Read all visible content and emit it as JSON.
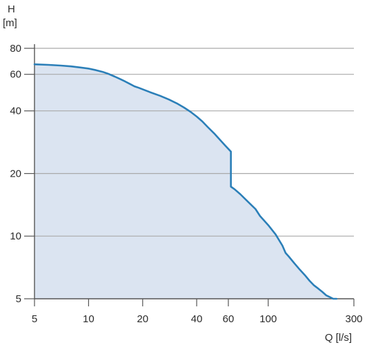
{
  "chart_data": {
    "type": "area",
    "title": "",
    "ylabel": "H",
    "ylabel_unit": "[m]",
    "xlabel": "Q [l/s]",
    "x_scale": "log",
    "y_scale": "log",
    "xlim": [
      5,
      300
    ],
    "ylim": [
      5,
      80
    ],
    "x_ticks": [
      5,
      10,
      20,
      40,
      60,
      100,
      300
    ],
    "y_ticks": [
      5,
      10,
      20,
      40,
      60,
      80
    ],
    "grid": true,
    "legend": "none",
    "colors": {
      "line": "#2b7fb8",
      "fill": "#dbe4f1",
      "grid": "#a9a9a9",
      "axis": "#555555",
      "text": "#2b2b2b"
    },
    "series": [
      {
        "x": [
          5,
          6,
          7,
          8,
          9,
          10,
          11,
          12,
          13,
          14,
          15,
          16,
          17,
          18,
          19,
          22,
          25,
          28,
          31,
          34,
          37,
          40,
          43,
          46,
          50,
          54,
          58,
          62,
          62,
          65,
          70,
          75,
          80,
          85,
          90,
          100,
          110,
          120,
          125,
          130,
          140,
          150,
          160,
          170,
          180,
          190,
          200,
          210,
          220,
          230,
          240
        ],
        "y": [
          67.0,
          66.6,
          66.1,
          65.5,
          64.7,
          63.9,
          62.8,
          61.6,
          60.1,
          58.5,
          56.9,
          55.4,
          53.9,
          52.5,
          51.7,
          49.2,
          47.3,
          45.4,
          43.5,
          41.5,
          39.6,
          37.6,
          35.6,
          33.5,
          31.2,
          29.0,
          27.1,
          25.5,
          17.3,
          16.8,
          15.9,
          15.0,
          14.2,
          13.5,
          12.5,
          11.3,
          10.2,
          9.0,
          8.3,
          8.0,
          7.4,
          6.9,
          6.5,
          6.1,
          5.8,
          5.6,
          5.4,
          5.2,
          5.1,
          5.0,
          5.0
        ]
      }
    ]
  }
}
